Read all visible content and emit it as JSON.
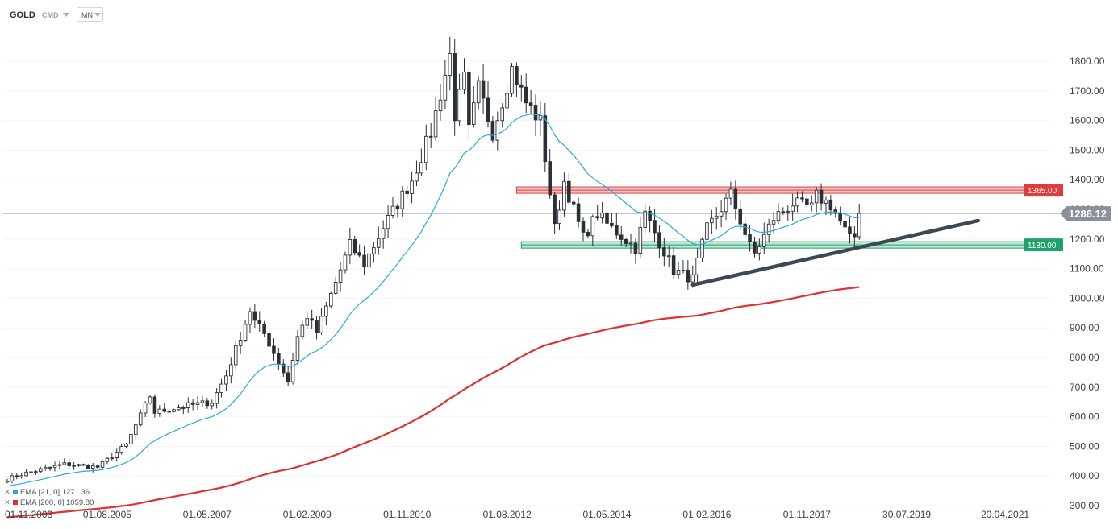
{
  "header": {
    "symbol": "GOLD",
    "source": "CMD",
    "timeframe": "MN"
  },
  "legend": [
    {
      "name": "EMA",
      "params": "[21, 0]",
      "value": "1271.36",
      "color": "#29a9e0"
    },
    {
      "name": "EMA",
      "params": "[200, 0]",
      "value": "1059.80",
      "color": "#e0312f"
    }
  ],
  "chart_data": {
    "type": "candlestick",
    "instrument": "GOLD",
    "timeframe": "MN",
    "y_range": [
      300,
      1880
    ],
    "y_ticks": [
      1800,
      1700,
      1600,
      1500,
      1400,
      1300,
      1200,
      1100,
      1000,
      900,
      800,
      700,
      600,
      500,
      400,
      300
    ],
    "y_tick_labels": [
      "1800.00",
      "1700.00",
      "1600.00",
      "1500.00",
      "1400.00",
      "1300.00",
      "1200.00",
      "1100.00",
      "1000.00",
      "900.00",
      "800.00",
      "700.00",
      "600.00",
      "500.00",
      "400.00",
      "300.00"
    ],
    "x_start": "2003-11-01",
    "x_end": "2021-07-01",
    "x_ticks": [
      "2003-11-01",
      "2005-08-01",
      "2007-05-01",
      "2009-02-01",
      "2010-11-01",
      "2012-08-01",
      "2014-05-01",
      "2016-02-01",
      "2017-11-01",
      "2019-07-30",
      "2021-04-20"
    ],
    "x_tick_labels": [
      "01.11.2003",
      "01.08.2005",
      "01.05.2007",
      "01.02.2009",
      "01.11.2010",
      "01.08.2012",
      "01.05.2014",
      "01.02.2016",
      "01.11.2017",
      "30.07.2019",
      "20.04.2021"
    ],
    "last_candle_date": "2018-10-01",
    "current_price": 1286.12,
    "current_price_label": "1286.12",
    "current_price_color": "#8a919b",
    "resistance": {
      "value": 1365,
      "label": "1365.00",
      "color": "#e23b3b",
      "from": "2012-10-01"
    },
    "support": {
      "value": 1180,
      "label": "1180.00",
      "color": "#22a06b",
      "from": "2012-11-01"
    },
    "trendline": {
      "from": [
        "2015-11-01",
        1045
      ],
      "to": [
        "2020-11-01",
        1262
      ],
      "color": "#3f4753"
    },
    "anchors": [
      [
        "2003-11-01",
        390
      ],
      [
        "2004-03-01",
        410
      ],
      [
        "2004-11-01",
        440
      ],
      [
        "2005-06-01",
        430
      ],
      [
        "2005-12-01",
        505
      ],
      [
        "2006-05-01",
        670
      ],
      [
        "2006-06-01",
        615
      ],
      [
        "2006-12-01",
        635
      ],
      [
        "2007-06-01",
        650
      ],
      [
        "2007-09-01",
        740
      ],
      [
        "2008-02-01",
        960
      ],
      [
        "2008-03-01",
        920
      ],
      [
        "2008-05-01",
        880
      ],
      [
        "2008-10-01",
        720
      ],
      [
        "2008-12-01",
        870
      ],
      [
        "2009-02-01",
        940
      ],
      [
        "2009-04-01",
        885
      ],
      [
        "2009-11-01",
        1180
      ],
      [
        "2010-02-01",
        1115
      ],
      [
        "2010-06-01",
        1240
      ],
      [
        "2010-12-01",
        1400
      ],
      [
        "2011-04-01",
        1560
      ],
      [
        "2011-08-01",
        1820
      ],
      [
        "2011-09-01",
        1620
      ],
      [
        "2011-11-01",
        1740
      ],
      [
        "2011-12-01",
        1565
      ],
      [
        "2012-02-01",
        1710
      ],
      [
        "2012-05-01",
        1560
      ],
      [
        "2012-09-01",
        1775
      ],
      [
        "2012-12-01",
        1660
      ],
      [
        "2013-03-01",
        1595
      ],
      [
        "2013-04-01",
        1475
      ],
      [
        "2013-06-01",
        1235
      ],
      [
        "2013-08-01",
        1395
      ],
      [
        "2013-12-01",
        1205
      ],
      [
        "2014-03-01",
        1285
      ],
      [
        "2014-05-01",
        1250
      ],
      [
        "2014-11-01",
        1170
      ],
      [
        "2015-01-01",
        1285
      ],
      [
        "2015-07-01",
        1095
      ],
      [
        "2015-11-01",
        1065
      ],
      [
        "2016-02-01",
        1235
      ],
      [
        "2016-07-01",
        1350
      ],
      [
        "2016-11-01",
        1175
      ],
      [
        "2016-12-01",
        1150
      ],
      [
        "2017-04-01",
        1270
      ],
      [
        "2017-08-01",
        1320
      ],
      [
        "2017-12-01",
        1305
      ],
      [
        "2018-01-01",
        1345
      ],
      [
        "2018-04-01",
        1315
      ],
      [
        "2018-08-01",
        1200
      ],
      [
        "2018-11-01",
        1225
      ],
      [
        "2019-01-01",
        1320
      ],
      [
        "2019-03-01",
        1295
      ],
      [
        "2019-05-01",
        1286
      ]
    ],
    "ema21": {
      "label": "EMA [21, 0]",
      "color": "#29a9e0",
      "last": 1271.36
    },
    "ema200": {
      "label": "EMA [200, 0]",
      "color": "#e0312f",
      "last": 1059.8
    }
  }
}
